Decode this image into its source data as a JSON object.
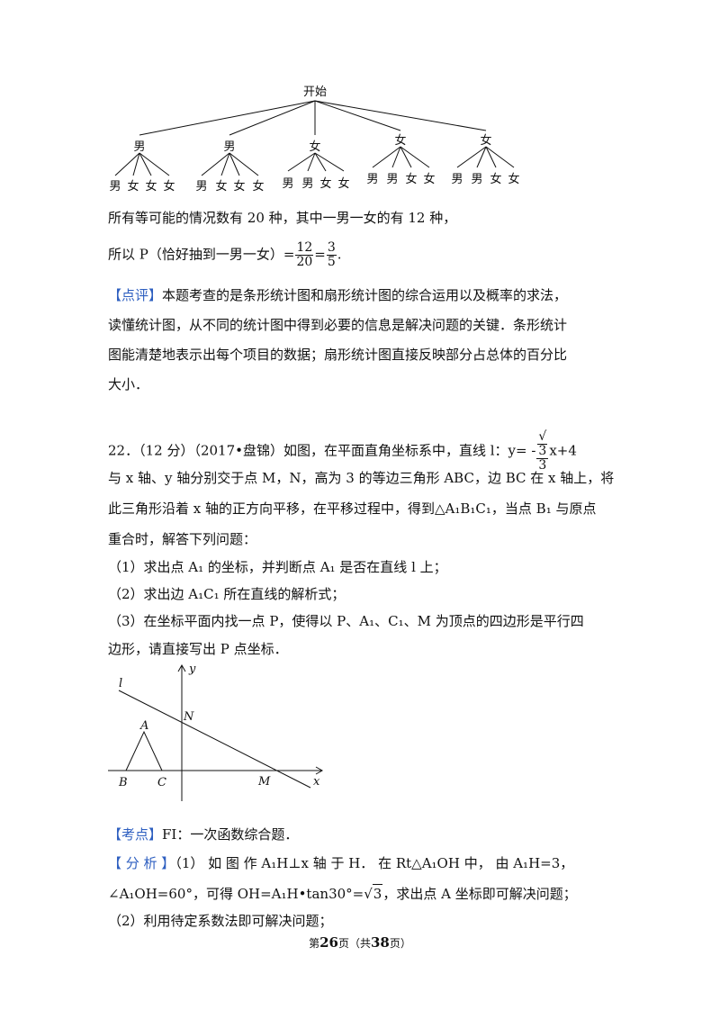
{
  "tree": {
    "root": "开始",
    "level1": [
      "男",
      "男",
      "女",
      "女",
      "女"
    ],
    "level2": [
      [
        "男",
        "女",
        "女",
        "女"
      ],
      [
        "男",
        "女",
        "女",
        "女"
      ],
      [
        "男",
        "男",
        "女",
        "女"
      ],
      [
        "男",
        "男",
        "女",
        "女"
      ],
      [
        "男",
        "男",
        "女",
        "女"
      ]
    ]
  },
  "solution": {
    "line1": "所有等可能的情况数有 20 种，其中一男一女的有 12 种，",
    "line2_prefix": "所以 P（恰好抽到一男一女）=",
    "frac1_num": "12",
    "frac1_den": "20",
    "eq": "=",
    "frac2_num": "3",
    "frac2_den": "5",
    "line2_end": "."
  },
  "review": {
    "tag": "【点评】",
    "lines": [
      "本题考查的是条形统计图和扇形统计图的综合运用以及概率的求法，",
      "读懂统计图，从不同的统计图中得到必要的信息是解决问题的关键．条形统计",
      "图能清楚地表示出每个项目的数据；扇形统计图直接反映部分占总体的百分比",
      "大小．"
    ]
  },
  "problem22": {
    "head": "22．（12 分）（2017•盘锦）如图，在平面直角坐标系中，直线 l：y= -",
    "sqrt3": "3",
    "den3": "3",
    "tail": "x+4",
    "line2": "与 x 轴、y 轴分别交于点 M，N，高为 3 的等边三角形 ABC，边 BC 在 x 轴上，将",
    "line3": "此三角形沿着 x 轴的正方向平移，在平移过程中，得到△A₁B₁C₁，当点 B₁ 与原点",
    "line4": "重合时，解答下列问题：",
    "q1": "（1）求出点 A₁ 的坐标，并判断点 A₁ 是否在直线 l 上；",
    "q2": "（2）求出边 A₁C₁ 所在直线的解析式；",
    "q3a": "（3）在坐标平面内找一点 P，使得以 P、A₁、C₁、M 为顶点的四边形是平行四",
    "q3b": "边形，请直接写出 P 点坐标．"
  },
  "figure": {
    "l": "l",
    "y": "y",
    "N": "N",
    "A": "A",
    "B": "B",
    "C": "C",
    "M": "M",
    "x": "x"
  },
  "kaodian": {
    "tag": "【考点】",
    "text": "FI：一次函数综合题．"
  },
  "fenxi": {
    "tag": "【 分 析 】",
    "line1": "（1） 如 图 作 A₁H⊥x 轴 于 H． 在 Rt△A₁OH 中， 由 A₁H=3，",
    "line2_a": "∠A₁OH=60°，可得 OH=A₁H•tan30°=",
    "line2_sqrt": "3",
    "line2_b": "，求出点 A 坐标即可解决问题；",
    "line3": "（2）利用待定系数法即可解决问题；"
  },
  "footer": {
    "pre": "第",
    "page": "26",
    "mid": "页（共",
    "total": "38",
    "post": "页）"
  }
}
